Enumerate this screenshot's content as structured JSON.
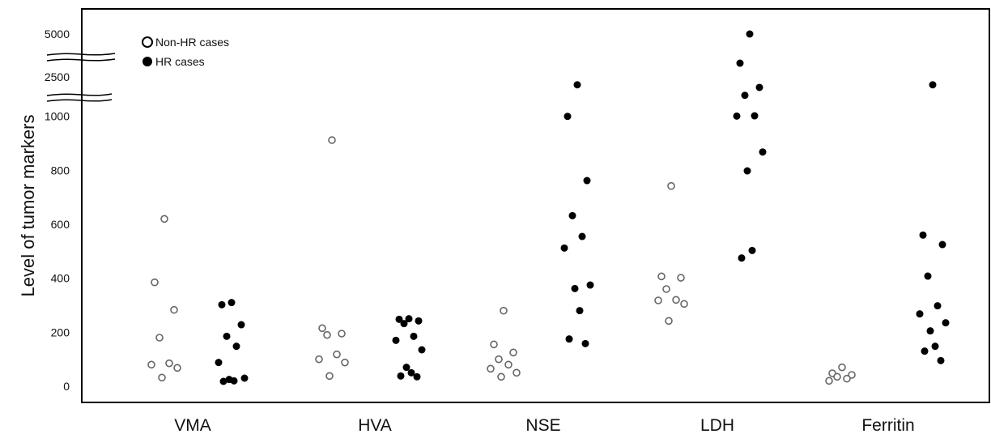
{
  "chart_data": {
    "type": "scatter",
    "title": "",
    "xlabel": "",
    "ylabel": "Level of tumor markers",
    "categories": [
      "VMA",
      "HVA",
      "NSE",
      "LDH",
      "Ferritin"
    ],
    "y_ticks": [
      "0",
      "200",
      "400",
      "600",
      "800",
      "1000",
      "2500",
      "5000"
    ],
    "y_axis_breaks": [
      "1000-2500",
      "2500-5000"
    ],
    "legend": {
      "position": "top-left",
      "entries": [
        {
          "label": "Non-HR cases",
          "marker": "open-circle"
        },
        {
          "label": "HR cases",
          "marker": "filled-circle"
        }
      ]
    },
    "series": [
      {
        "name": "Non-HR cases",
        "marker": "open-circle",
        "color": "#666666",
        "points": {
          "VMA": [
            620,
            385,
            283,
            180,
            85,
            80,
            68,
            32
          ],
          "HVA": [
            912,
            215,
            195,
            190,
            118,
            100,
            88,
            38
          ],
          "NSE": [
            280,
            155,
            125,
            100,
            80,
            65,
            50,
            35
          ],
          "LDH": [
            742,
            407,
            402,
            360,
            320,
            318,
            305,
            242
          ],
          "Ferritin": [
            70,
            48,
            42,
            35,
            28,
            20
          ]
        }
      },
      {
        "name": "HR cases",
        "marker": "filled-circle",
        "color": "#000000",
        "points": {
          "VMA": [
            310,
            302,
            228,
            185,
            148,
            88,
            30,
            25,
            20,
            18
          ],
          "HVA": [
            250,
            248,
            242,
            232,
            185,
            170,
            135,
            70,
            50,
            38,
            35
          ],
          "NSE": [
            2200,
            1000,
            762,
            632,
            555,
            512,
            375,
            362,
            280,
            175,
            158
          ],
          "LDH": [
            5000,
            3300,
            2100,
            1800,
            1020,
            1010,
            868,
            798,
            503,
            475
          ],
          "Ferritin": [
            2200,
            560,
            525,
            408,
            298,
            268,
            235,
            205,
            148,
            130,
            95
          ]
        }
      }
    ],
    "grid": false
  }
}
